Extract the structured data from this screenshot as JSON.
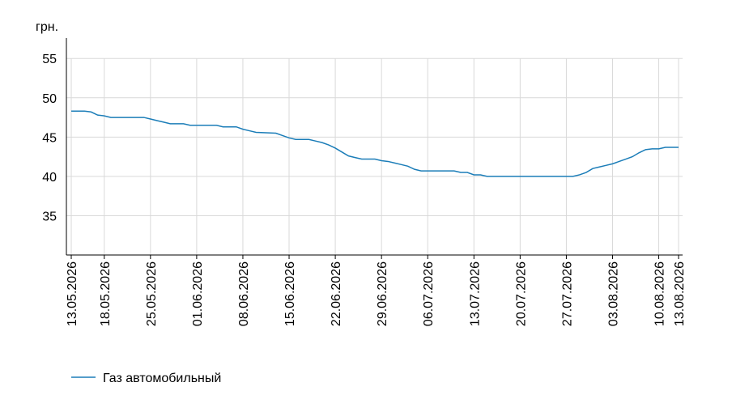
{
  "chart_data": {
    "type": "line",
    "y_label": "грн.",
    "x": [
      "13.05.2026",
      "15.05.2026",
      "16.05.2026",
      "17.05.2026",
      "18.05.2026",
      "19.05.2026",
      "24.05.2026",
      "25.05.2026",
      "26.05.2026",
      "27.05.2026",
      "28.05.2026",
      "30.05.2026",
      "31.05.2026",
      "04.06.2026",
      "05.06.2026",
      "07.06.2026",
      "08.06.2026",
      "09.06.2026",
      "10.06.2026",
      "13.06.2026",
      "14.06.2026",
      "15.06.2026",
      "16.06.2026",
      "18.06.2026",
      "19.06.2026",
      "20.06.2026",
      "21.06.2026",
      "22.06.2026",
      "23.06.2026",
      "24.06.2026",
      "25.06.2026",
      "26.06.2026",
      "28.06.2026",
      "29.06.2026",
      "30.06.2026",
      "01.07.2026",
      "02.07.2026",
      "03.07.2026",
      "04.07.2026",
      "05.07.2026",
      "10.07.2026",
      "11.07.2026",
      "12.07.2026",
      "13.07.2026",
      "14.07.2026",
      "15.07.2026",
      "28.07.2026",
      "29.07.2026",
      "30.07.2026",
      "31.07.2026",
      "01.08.2026",
      "02.08.2026",
      "03.08.2026",
      "04.08.2026",
      "05.08.2026",
      "06.08.2026",
      "07.08.2026",
      "08.08.2026",
      "09.08.2026",
      "10.08.2026",
      "11.08.2026",
      "13.08.2026"
    ],
    "series": [
      {
        "name": "Газ автомобильный",
        "color": "#1b7db8",
        "values": [
          48.3,
          48.3,
          48.2,
          47.8,
          47.7,
          47.5,
          47.5,
          47.3,
          47.1,
          46.9,
          46.7,
          46.7,
          46.5,
          46.5,
          46.3,
          46.3,
          46.0,
          45.8,
          45.6,
          45.5,
          45.2,
          44.9,
          44.7,
          44.7,
          44.5,
          44.3,
          44.0,
          43.6,
          43.1,
          42.6,
          42.4,
          42.2,
          42.2,
          42.0,
          41.9,
          41.7,
          41.5,
          41.3,
          40.9,
          40.7,
          40.7,
          40.5,
          40.5,
          40.2,
          40.2,
          40.0,
          40.0,
          40.2,
          40.5,
          41.0,
          41.2,
          41.4,
          41.6,
          41.9,
          42.2,
          42.5,
          43.0,
          43.4,
          43.5,
          43.5,
          43.7,
          43.7
        ]
      }
    ],
    "xlim": [
      "13.05.2026",
      "13.08.2026"
    ],
    "xticks": [
      "13.05.2026",
      "18.05.2026",
      "25.05.2026",
      "01.06.2026",
      "08.06.2026",
      "15.06.2026",
      "22.06.2026",
      "29.06.2026",
      "06.07.2026",
      "13.07.2026",
      "20.07.2026",
      "27.07.2026",
      "03.08.2026",
      "10.08.2026",
      "13.08.2026"
    ],
    "ylim": [
      30,
      57.6
    ],
    "yticks": [
      35,
      40,
      45,
      50,
      55
    ],
    "grid": true
  }
}
